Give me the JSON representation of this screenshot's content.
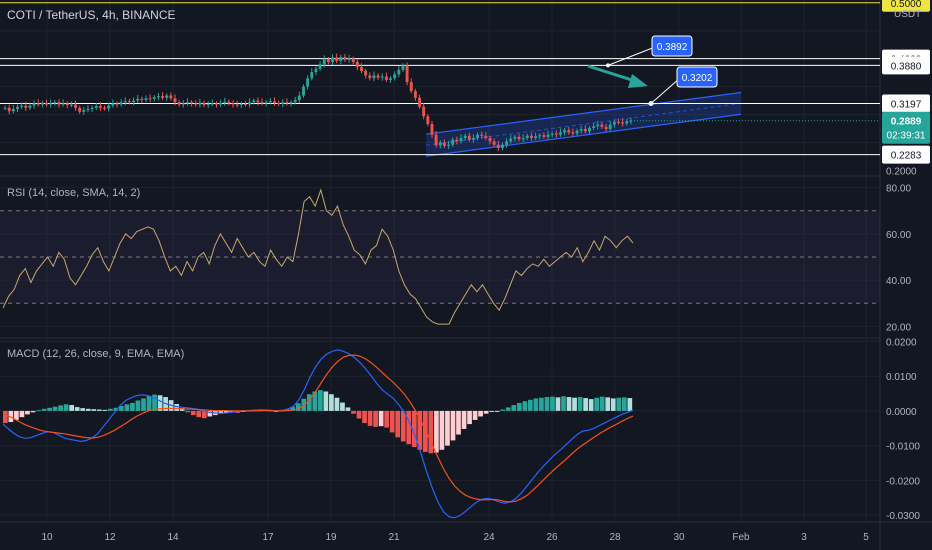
{
  "header": {
    "symbol": "COTI / TetherUS, 4h, BINANCE",
    "currency": "USDT"
  },
  "colors": {
    "background": "#131722",
    "up": "#26a69a",
    "down": "#ef5350",
    "grid": "#1e222d",
    "channel": "#2962ff",
    "rsi_line": "#c9a86a",
    "macd_line": "#2962ff",
    "signal_line": "#f4511e",
    "arrow": "#26a69a",
    "level_yellow": "#f0e443"
  },
  "chart_data": [
    {
      "type": "candlestick",
      "title": "COTI / TetherUS, 4h, BINANCE",
      "ylabel": "USDT",
      "ylim": [
        0.19,
        0.505
      ],
      "x_ticks": [
        "10",
        "12",
        "14",
        "17",
        "19",
        "21",
        "24",
        "26",
        "28",
        "30",
        "Feb",
        "3",
        "5"
      ],
      "y_ticks": [
        "0.2000",
        "0.5000"
      ],
      "price_levels": [
        {
          "label": "0.5000",
          "value": 0.5,
          "color": "#f0e443"
        },
        {
          "label": "0.4000",
          "value": 0.4,
          "color": "#ffffff"
        },
        {
          "label": "0.3880",
          "value": 0.388,
          "color": "#ffffff"
        },
        {
          "label": "0.3197",
          "value": 0.3197,
          "color": "#ffffff"
        },
        {
          "label": "0.2283",
          "value": 0.2283,
          "color": "#ffffff"
        }
      ],
      "current_price": {
        "value": 0.2889,
        "label": "0.2889",
        "countdown": "02:39:31"
      },
      "annotations": [
        {
          "label": "0.3892",
          "value": 0.3892
        },
        {
          "label": "0.3202",
          "value": 0.3202
        }
      ],
      "channel": {
        "upper": [
          [
            0.248,
            0.2648
          ],
          [
            0.33,
            0.3395
          ]
        ],
        "lower": [
          [
            0.208,
            0.2254
          ],
          [
            0.292,
            0.3005
          ]
        ]
      },
      "series": [
        {
          "name": "COTI/USDT",
          "close": [
            0.312,
            0.306,
            0.31,
            0.314,
            0.316,
            0.312,
            0.316,
            0.32,
            0.318,
            0.321,
            0.318,
            0.32,
            0.322,
            0.318,
            0.32,
            0.317,
            0.318,
            0.312,
            0.305,
            0.308,
            0.31,
            0.312,
            0.315,
            0.312,
            0.311,
            0.316,
            0.32,
            0.318,
            0.322,
            0.324,
            0.322,
            0.325,
            0.328,
            0.326,
            0.329,
            0.328,
            0.331,
            0.333,
            0.33,
            0.334,
            0.329,
            0.322,
            0.318,
            0.32,
            0.322,
            0.32,
            0.318,
            0.321,
            0.317,
            0.319,
            0.32,
            0.318,
            0.321,
            0.323,
            0.32,
            0.318,
            0.317,
            0.319,
            0.318,
            0.322,
            0.325,
            0.322,
            0.32,
            0.322,
            0.324,
            0.321,
            0.319,
            0.322,
            0.32,
            0.322,
            0.326,
            0.334,
            0.35,
            0.365,
            0.376,
            0.382,
            0.39,
            0.399,
            0.394,
            0.402,
            0.396,
            0.403,
            0.398,
            0.4,
            0.394,
            0.385,
            0.378,
            0.37,
            0.365,
            0.37,
            0.366,
            0.368,
            0.362,
            0.365,
            0.372,
            0.38,
            0.388,
            0.358,
            0.342,
            0.33,
            0.314,
            0.297,
            0.283,
            0.264,
            0.245,
            0.25,
            0.244,
            0.246,
            0.255,
            0.252,
            0.258,
            0.262,
            0.255,
            0.258,
            0.264,
            0.262,
            0.258,
            0.252,
            0.246,
            0.24,
            0.246,
            0.252,
            0.257,
            0.26,
            0.256,
            0.258,
            0.262,
            0.258,
            0.261,
            0.263,
            0.26,
            0.264,
            0.266,
            0.264,
            0.268,
            0.272,
            0.268,
            0.266,
            0.271,
            0.274,
            0.27,
            0.276,
            0.279,
            0.282,
            0.278,
            0.274,
            0.282,
            0.287,
            0.286,
            0.284,
            0.288,
            0.2889
          ],
          "trend": "side-ways around 0.31–0.33, rally to ~0.40, drop to ~0.24, then ascending channel to 0.2889"
        }
      ]
    },
    {
      "type": "line",
      "title": "RSI (14, close, SMA, 14, 2)",
      "ylim": [
        15,
        85
      ],
      "y_ticks": [
        "80.00",
        "60.00",
        "40.00",
        "20.00"
      ],
      "bands": [
        70,
        50,
        30
      ],
      "series": [
        {
          "name": "RSI",
          "values": [
            28,
            33,
            36,
            42,
            45,
            39,
            44,
            47,
            50,
            46,
            52,
            49,
            41,
            38,
            42,
            46,
            51,
            54,
            48,
            44,
            50,
            56,
            60,
            58,
            61,
            62,
            63,
            62,
            57,
            50,
            44,
            46,
            42,
            48,
            44,
            50,
            52,
            47,
            55,
            60,
            56,
            52,
            58,
            54,
            50,
            52,
            48,
            46,
            53,
            49,
            46,
            50,
            48,
            60,
            74,
            76,
            72,
            79,
            70,
            68,
            72,
            64,
            59,
            53,
            51,
            47,
            53,
            55,
            62,
            59,
            53,
            44,
            38,
            34,
            32,
            28,
            24,
            22,
            21,
            21,
            21,
            26,
            30,
            34,
            38,
            35,
            38,
            34,
            30,
            27,
            32,
            38,
            44,
            42,
            45,
            47,
            46,
            49,
            46,
            48,
            50,
            52,
            50,
            54,
            48,
            52,
            57,
            53,
            59,
            57,
            54,
            57,
            59,
            56
          ]
        }
      ]
    },
    {
      "type": "bar",
      "title": "MACD (12, 26, close, 9, EMA, EMA)",
      "ylim": [
        -0.032,
        0.021
      ],
      "y_ticks": [
        "0.0200",
        "0.0100",
        "0.0000",
        "-0.0100",
        "-0.0200",
        "-0.0300"
      ],
      "series": [
        {
          "name": "Histogram",
          "values": [
            -0.0035,
            -0.0032,
            -0.0026,
            -0.0018,
            -0.001,
            -0.0004,
            0.0002,
            0.0006,
            0.0009,
            0.0012,
            0.0016,
            0.0019,
            0.0017,
            0.0011,
            0.0008,
            0.0006,
            0.0005,
            0.0004,
            0.0003,
            0.0006,
            0.0009,
            0.0014,
            0.0019,
            0.0023,
            0.003,
            0.0036,
            0.0043,
            0.0047,
            0.0045,
            0.004,
            0.0031,
            0.002,
            0.0008,
            -0.0004,
            -0.0012,
            -0.0018,
            -0.0021,
            -0.0016,
            -0.0012,
            -0.0008,
            -0.0005,
            -0.0004,
            -0.0006,
            -0.0002,
            0.0001,
            0.0003,
            0.0002,
            0.0004,
            0.0002,
            0.0,
            0.0003,
            0.0006,
            0.0012,
            0.0022,
            0.0035,
            0.0048,
            0.0056,
            0.006,
            0.0056,
            0.0048,
            0.0038,
            0.0024,
            0.001,
            -0.0008,
            -0.0022,
            -0.0035,
            -0.0043,
            -0.0046,
            -0.0044,
            -0.0048,
            -0.0062,
            -0.0076,
            -0.0088,
            -0.0096,
            -0.0104,
            -0.0112,
            -0.0118,
            -0.0122,
            -0.012,
            -0.0112,
            -0.01,
            -0.0085,
            -0.0068,
            -0.0052,
            -0.0038,
            -0.0026,
            -0.0016,
            -0.0008,
            -0.0002,
            -0.0001,
            0.0004,
            0.001,
            0.0017,
            0.0023,
            0.0028,
            0.0032,
            0.0036,
            0.0038,
            0.004,
            0.0041,
            0.0039,
            0.0042,
            0.004,
            0.0038,
            0.004,
            0.0037,
            0.0034,
            0.0038,
            0.0041,
            0.0039,
            0.0036,
            0.0038,
            0.0039,
            0.0037
          ]
        },
        {
          "name": "MACD",
          "values": [
            -0.0038,
            -0.0052,
            -0.0065,
            -0.0075,
            -0.0079,
            -0.0077,
            -0.0071,
            -0.0065,
            -0.006,
            -0.0062,
            -0.007,
            -0.0078,
            -0.0082,
            -0.0085,
            -0.0088,
            -0.0085,
            -0.0078,
            -0.0065,
            -0.0045,
            -0.0025,
            -0.0005,
            0.0015,
            0.003,
            0.0038,
            0.0044,
            0.0046,
            0.0044,
            0.0038,
            0.003,
            0.0022,
            0.0017,
            0.0013,
            0.0011,
            0.0009,
            0.0007,
            0.0004,
            0.0,
            -0.0004,
            -0.0006,
            -0.0007,
            -0.0006,
            -0.0004,
            -0.0002,
            0.0,
            0.0001,
            0.0002,
            0.0003,
            0.0003,
            0.0002,
            0.0,
            0.0001,
            0.0005,
            0.0012,
            0.003,
            0.006,
            0.0095,
            0.0125,
            0.0148,
            0.0163,
            0.0171,
            0.0176,
            0.0172,
            0.0165,
            0.0154,
            0.014,
            0.0122,
            0.0102,
            0.008,
            0.0061,
            0.0048,
            0.0036,
            0.0018,
            -0.0005,
            -0.0036,
            -0.0076,
            -0.0124,
            -0.0176,
            -0.0222,
            -0.0262,
            -0.029,
            -0.0305,
            -0.0308,
            -0.0301,
            -0.0289,
            -0.0275,
            -0.0262,
            -0.0254,
            -0.0252,
            -0.0256,
            -0.0262,
            -0.0266,
            -0.0262,
            -0.0252,
            -0.0236,
            -0.0216,
            -0.0196,
            -0.0176,
            -0.0158,
            -0.0141,
            -0.0126,
            -0.0112,
            -0.0097,
            -0.0082,
            -0.0068,
            -0.0058,
            -0.0056,
            -0.005,
            -0.0042,
            -0.0034,
            -0.0026,
            -0.0018,
            -0.001,
            -0.0004,
            0.0002
          ]
        },
        {
          "name": "Signal",
          "values": [
            -0.0008,
            -0.0015,
            -0.0023,
            -0.0032,
            -0.004,
            -0.0046,
            -0.0052,
            -0.0057,
            -0.006,
            -0.0062,
            -0.0064,
            -0.0066,
            -0.0069,
            -0.0072,
            -0.0075,
            -0.0077,
            -0.0078,
            -0.0076,
            -0.0071,
            -0.0064,
            -0.0056,
            -0.0046,
            -0.0036,
            -0.0025,
            -0.0015,
            -0.0007,
            0.0,
            0.0004,
            0.0006,
            0.0007,
            0.0007,
            0.0007,
            0.0006,
            0.0005,
            0.0005,
            0.0004,
            0.0003,
            0.0002,
            0.0001,
            0.0001,
            0.0001,
            0.0,
            0.0,
            0.0,
            0.0,
            0.0,
            0.0001,
            0.0001,
            0.0001,
            0.0,
            0.0,
            0.0001,
            0.0002,
            0.0006,
            0.0016,
            0.0032,
            0.0054,
            0.0079,
            0.0104,
            0.0125,
            0.0142,
            0.0154,
            0.016,
            0.0161,
            0.0158,
            0.015,
            0.0139,
            0.0126,
            0.0111,
            0.0096,
            0.0082,
            0.0066,
            0.0048,
            0.0026,
            0.0,
            -0.003,
            -0.0063,
            -0.0098,
            -0.0133,
            -0.0166,
            -0.0194,
            -0.0216,
            -0.0232,
            -0.0243,
            -0.025,
            -0.0254,
            -0.0256,
            -0.0256,
            -0.0255,
            -0.0257,
            -0.0261,
            -0.0262,
            -0.026,
            -0.0253,
            -0.0243,
            -0.0229,
            -0.0214,
            -0.0198,
            -0.0182,
            -0.0167,
            -0.0153,
            -0.0139,
            -0.0124,
            -0.011,
            -0.0098,
            -0.0087,
            -0.0076,
            -0.0066,
            -0.0056,
            -0.0047,
            -0.0039,
            -0.003,
            -0.0022,
            -0.0015
          ]
        }
      ]
    }
  ]
}
